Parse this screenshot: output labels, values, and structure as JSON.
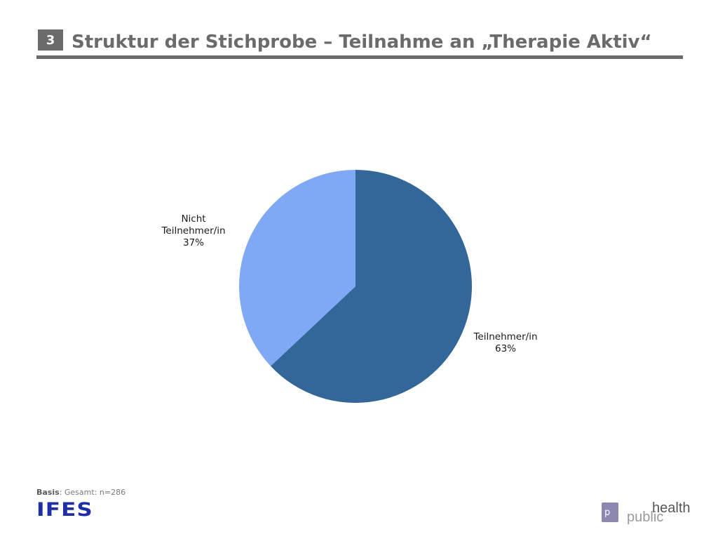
{
  "header": {
    "slide_number": "3",
    "title": "Struktur der Stichprobe – Teilnahme an „Therapie Aktiv“"
  },
  "chart_data": {
    "type": "pie",
    "slices": [
      {
        "label": "Teilnehmer/in",
        "value": 63,
        "value_label": "63%",
        "color": "#336699"
      },
      {
        "label": "Nicht Teilnehmer/in",
        "label_lines": [
          "Nicht",
          "Teilnehmer/in"
        ],
        "value": 37,
        "value_label": "37%",
        "color": "#7fa8f5"
      }
    ],
    "start": "12 o'clock",
    "direction": "clockwise"
  },
  "footer": {
    "basis_label": "Basis",
    "basis_text": ": Gesamt: n=286",
    "ifes_logo": "IFES",
    "ph_logo_p": "p",
    "ph_logo_health": "health",
    "ph_logo_public": "public"
  },
  "colors": {
    "title": "#6b6b6b",
    "ifes_blue": "#1f2fa8"
  }
}
